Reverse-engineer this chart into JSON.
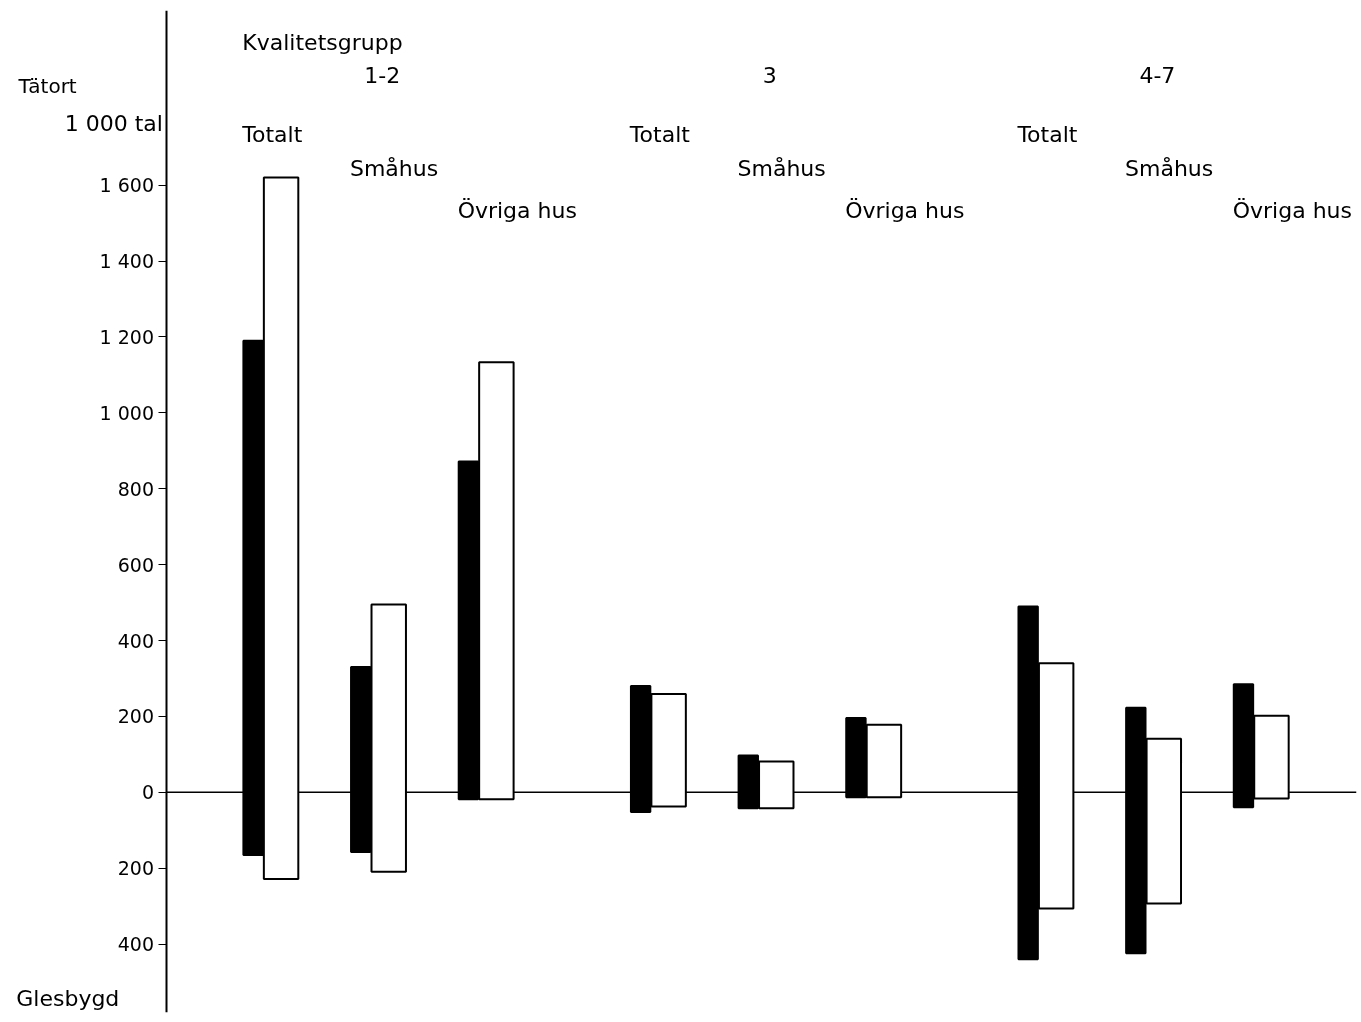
{
  "chart_data": {
    "type": "bar",
    "ylabel": "1 000 tal",
    "categories": [
      "Totalt",
      "Småhus",
      "Övriga hus",
      "Totalt",
      "Småhus",
      "Övriga hus",
      "Totalt",
      "Småhus",
      "Övriga hus"
    ],
    "series": [
      {
        "color": "#000000",
        "values": [
          1355,
          487,
          890,
          332,
          139,
          209,
          930,
          647,
          324
        ],
        "base": [
          -165,
          -157,
          -18,
          -52,
          -42,
          -13,
          -440,
          -424,
          -39
        ]
      },
      {
        "color": "#ffffff",
        "values": [
          1848,
          704,
          1151,
          296,
          123,
          191,
          646,
          434,
          218
        ],
        "base": [
          -228,
          -209,
          -18,
          -37,
          -42,
          -13,
          -306,
          -293,
          -16
        ]
      }
    ],
    "ylim": [
      -580,
      2060
    ],
    "yticks": [
      {
        "value": -400,
        "label": "400"
      },
      {
        "value": -200,
        "label": "200"
      },
      0,
      {
        "value": 200,
        "label": "200"
      },
      {
        "value": 400,
        "label": "400"
      },
      {
        "value": 600,
        "label": "600"
      },
      {
        "value": 800,
        "label": "800"
      },
      {
        "value": 1000,
        "label": "1 000"
      },
      {
        "value": 1200,
        "label": "1 200"
      },
      {
        "value": 1400,
        "label": "1 400"
      },
      {
        "value": 1600,
        "label": "1 600"
      }
    ],
    "annotations": [
      "Kvalitetsgrupp",
      "1-2",
      "3",
      "4-7",
      "Tätort",
      "Glesbygd"
    ]
  }
}
